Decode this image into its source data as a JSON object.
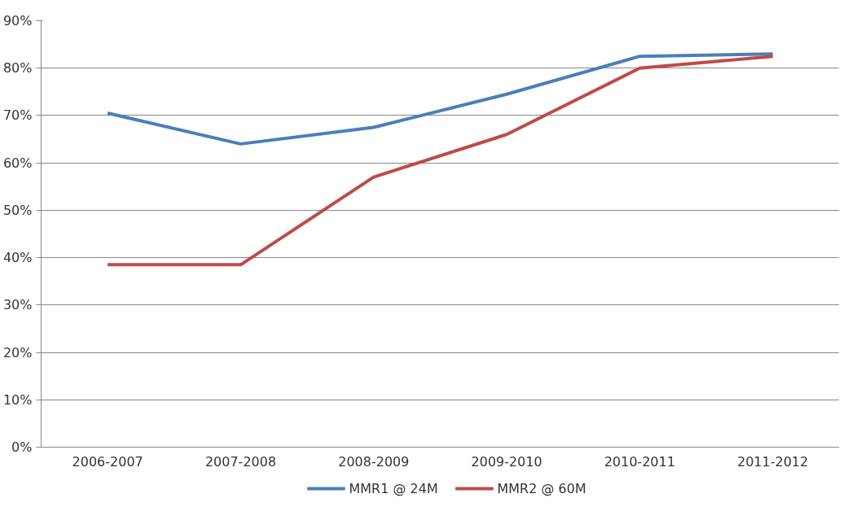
{
  "chart_data": {
    "type": "line",
    "categories": [
      "2006-2007",
      "2007-2008",
      "2008-2009",
      "2009-2010",
      "2010-2011",
      "2011-2012"
    ],
    "series": [
      {
        "name": "MMR1 @ 24M",
        "color": "#4a7ebb",
        "values": [
          70.5,
          64,
          67.5,
          74.5,
          82.5,
          83
        ]
      },
      {
        "name": "MMR2 @ 60M",
        "color": "#be4b48",
        "values": [
          38.5,
          38.5,
          57,
          66,
          80,
          82.5
        ]
      }
    ],
    "ylim": [
      0,
      90
    ],
    "yticks": [
      {
        "value": 0,
        "label": "0%"
      },
      {
        "value": 10,
        "label": "10%"
      },
      {
        "value": 20,
        "label": "20%"
      },
      {
        "value": 30,
        "label": "30%"
      },
      {
        "value": 40,
        "label": "40%"
      },
      {
        "value": 50,
        "label": "50%"
      },
      {
        "value": 60,
        "label": "60%"
      },
      {
        "value": 70,
        "label": "70%"
      },
      {
        "value": 80,
        "label": "80%"
      },
      {
        "value": 90,
        "label": "90%"
      }
    ],
    "grid": "y",
    "legend": "bottom",
    "marker": "none",
    "line_style": "solid"
  }
}
